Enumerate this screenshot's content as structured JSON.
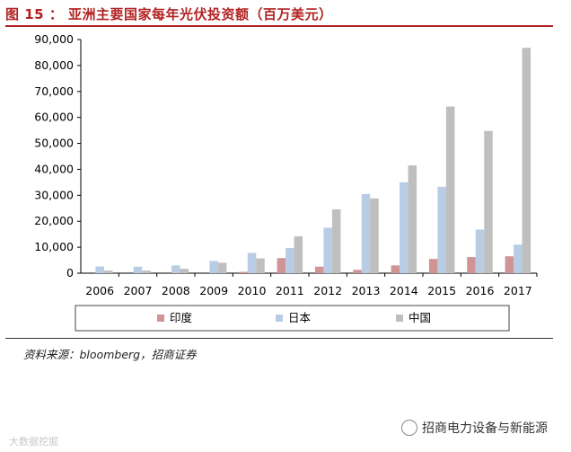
{
  "figure": {
    "title": "图 15 ： 亚洲主要国家每年光伏投资额（百万美元）",
    "source": "资料来源：bloomberg，招商证券",
    "watermark_right": "招商电力设备与新能源",
    "watermark_right_icon": "wechat-icon",
    "watermark_left": "大数据挖掘"
  },
  "chart_data": {
    "type": "bar",
    "title": "亚洲主要国家每年光伏投资额（百万美元）",
    "xlabel": "",
    "ylabel": "",
    "ylim": [
      0,
      90000
    ],
    "yticks": [
      0,
      10000,
      20000,
      30000,
      40000,
      50000,
      60000,
      70000,
      80000,
      90000
    ],
    "ytick_labels": [
      "0",
      "10,000",
      "20,000",
      "30,000",
      "40,000",
      "50,000",
      "60,000",
      "70,000",
      "80,000",
      "90,000"
    ],
    "grid": false,
    "legend_position": "bottom",
    "categories": [
      "2006",
      "2007",
      "2008",
      "2009",
      "2010",
      "2011",
      "2012",
      "2013",
      "2014",
      "2015",
      "2016",
      "2017"
    ],
    "series": [
      {
        "name": "印度",
        "color": "#d19494",
        "values": [
          0,
          0,
          0,
          0,
          500,
          5800,
          2500,
          1300,
          3000,
          5500,
          6200,
          6500
        ]
      },
      {
        "name": "日本",
        "color": "#b8cce4",
        "values": [
          2600,
          2500,
          3000,
          4700,
          7800,
          9700,
          17500,
          30500,
          35000,
          33300,
          16800,
          11000
        ]
      },
      {
        "name": "中国",
        "color": "#bfbfbf",
        "values": [
          1000,
          1000,
          1700,
          4000,
          5700,
          14200,
          24600,
          28800,
          41500,
          64200,
          54800,
          86800
        ]
      }
    ]
  }
}
